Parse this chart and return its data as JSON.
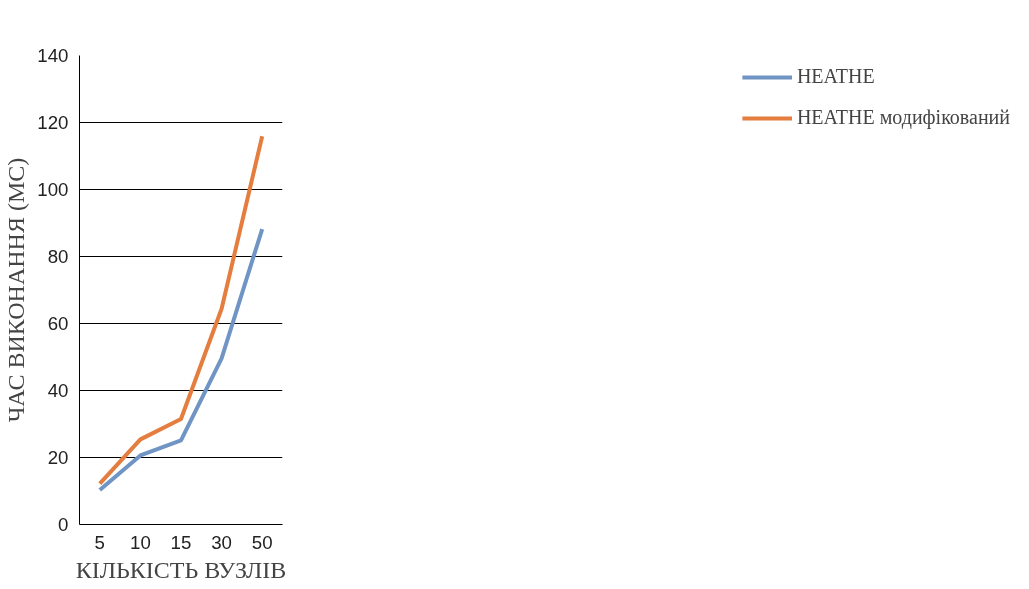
{
  "chart_data": {
    "type": "line",
    "xlabel": "КІЛЬКІСТЬ ВУЗЛІВ",
    "ylabel": "ЧАС ВИКОНАННЯ (МС)",
    "categories": [
      "5",
      "10",
      "15",
      "30",
      "50"
    ],
    "series": [
      {
        "name": "HEATHE",
        "color": "#7094c4",
        "values": [
          10.3,
          20.6,
          25.1,
          49.6,
          88.2
        ]
      },
      {
        "name": "HEATHE модифікований",
        "color": "#e57d3f",
        "values": [
          12.2,
          25.4,
          31.5,
          64.4,
          115.9
        ]
      }
    ],
    "ylim": [
      0,
      140
    ],
    "yticks": [
      0,
      20,
      40,
      60,
      80,
      100,
      120,
      140
    ],
    "grid": "y",
    "legend": "right",
    "marker": "none",
    "line_style": "solid"
  }
}
